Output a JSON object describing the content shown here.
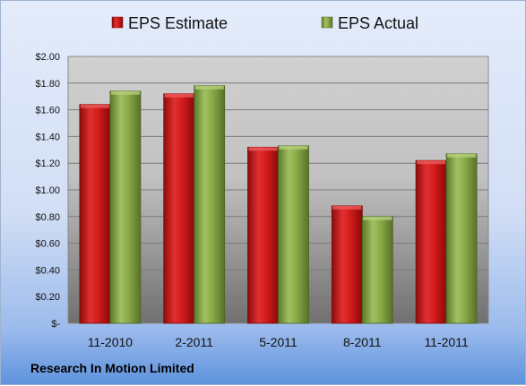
{
  "chart_data": {
    "type": "bar",
    "categories": [
      "11-2010",
      "2-2011",
      "5-2011",
      "8-2011",
      "11-2011"
    ],
    "series": [
      {
        "name": "EPS Estimate",
        "values": [
          1.64,
          1.72,
          1.32,
          0.88,
          1.22
        ],
        "color": "#d42020"
      },
      {
        "name": "EPS Actual",
        "values": [
          1.74,
          1.78,
          1.33,
          0.8,
          1.27
        ],
        "color": "#88aa44"
      }
    ],
    "ylim": [
      0,
      2.0
    ],
    "yticks": [
      0,
      0.2,
      0.4,
      0.6,
      0.8,
      1.0,
      1.2,
      1.4,
      1.6,
      1.8,
      2.0
    ],
    "ytick_labels": [
      "$-",
      "$0.20",
      "$0.40",
      "$0.60",
      "$0.80",
      "$1.00",
      "$1.20",
      "$1.40",
      "$1.60",
      "$1.80",
      "$2.00"
    ],
    "grid": true,
    "legend_position": "top"
  },
  "footer_label": "Research In Motion Limited"
}
